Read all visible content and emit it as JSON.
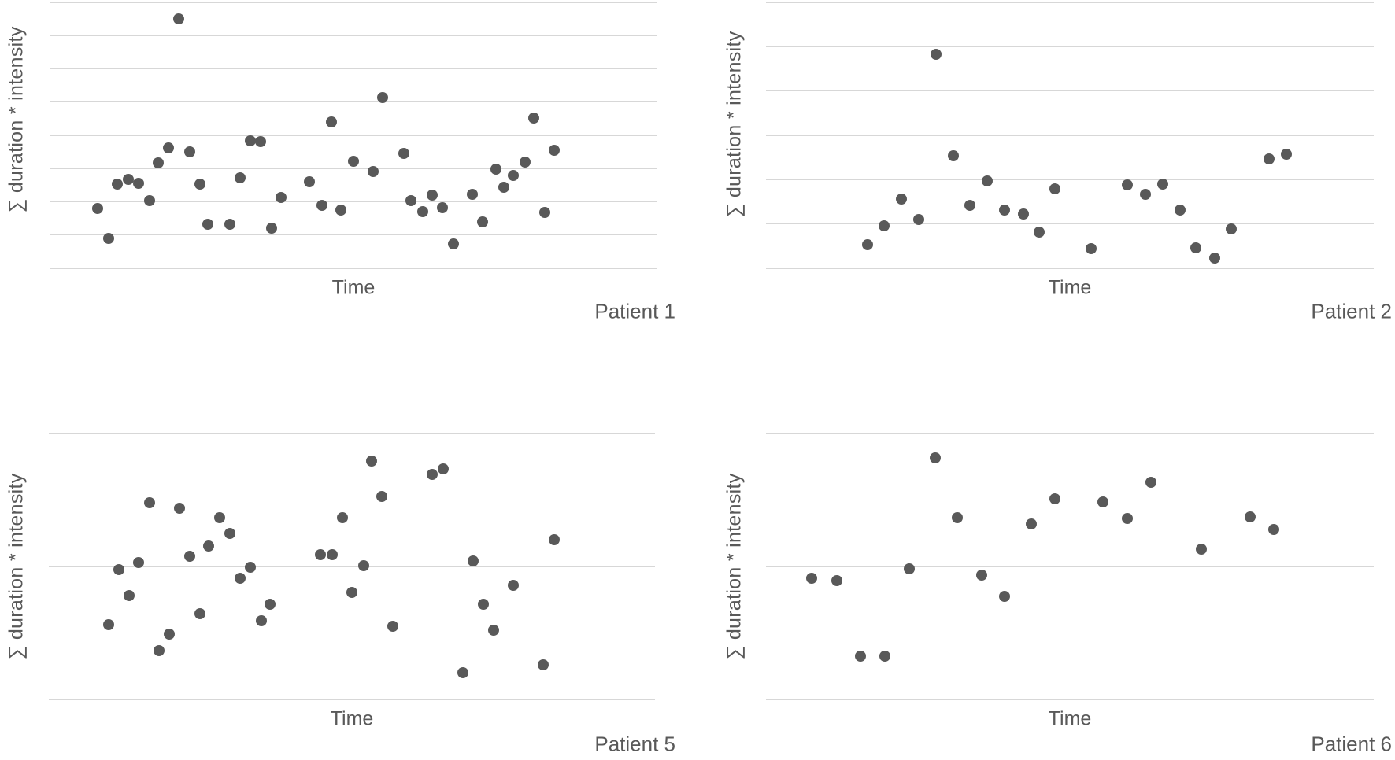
{
  "figure": {
    "background": "#ffffff",
    "point_color": "#595959",
    "gridline_color": "#d7d7d7",
    "text_color": "#595959"
  },
  "chart_data": [
    {
      "type": "scatter",
      "title": "Patient 1",
      "xlabel": "Time",
      "ylabel": "∑ duration * intensity",
      "tick_labels": "none",
      "legend": "none",
      "gridlines": 9,
      "points_rel": [
        [
          0.213,
          0.062
        ],
        [
          0.548,
          0.359
        ],
        [
          0.464,
          0.45
        ],
        [
          0.797,
          0.435
        ],
        [
          0.33,
          0.522
        ],
        [
          0.347,
          0.524
        ],
        [
          0.196,
          0.548
        ],
        [
          0.23,
          0.563
        ],
        [
          0.583,
          0.568
        ],
        [
          0.83,
          0.555
        ],
        [
          0.179,
          0.605
        ],
        [
          0.5,
          0.598
        ],
        [
          0.532,
          0.637
        ],
        [
          0.734,
          0.627
        ],
        [
          0.782,
          0.6
        ],
        [
          0.314,
          0.659
        ],
        [
          0.763,
          0.652
        ],
        [
          0.111,
          0.684
        ],
        [
          0.13,
          0.667
        ],
        [
          0.147,
          0.68
        ],
        [
          0.247,
          0.682
        ],
        [
          0.428,
          0.674
        ],
        [
          0.747,
          0.694
        ],
        [
          0.164,
          0.746
        ],
        [
          0.381,
          0.734
        ],
        [
          0.595,
          0.746
        ],
        [
          0.63,
          0.726
        ],
        [
          0.696,
          0.721
        ],
        [
          0.079,
          0.776
        ],
        [
          0.448,
          0.764
        ],
        [
          0.614,
          0.786
        ],
        [
          0.647,
          0.771
        ],
        [
          0.479,
          0.781
        ],
        [
          0.815,
          0.789
        ],
        [
          0.712,
          0.825
        ],
        [
          0.261,
          0.833
        ],
        [
          0.297,
          0.835
        ],
        [
          0.365,
          0.85
        ],
        [
          0.097,
          0.887
        ],
        [
          0.664,
          0.907
        ]
      ]
    },
    {
      "type": "scatter",
      "title": "Patient 2",
      "xlabel": "Time",
      "ylabel": "∑ duration * intensity",
      "tick_labels": "none",
      "legend": "none",
      "gridlines": 7,
      "points_rel": [
        [
          0.28,
          0.194
        ],
        [
          0.308,
          0.576
        ],
        [
          0.828,
          0.589
        ],
        [
          0.856,
          0.572
        ],
        [
          0.364,
          0.671
        ],
        [
          0.476,
          0.7
        ],
        [
          0.595,
          0.687
        ],
        [
          0.653,
          0.682
        ],
        [
          0.624,
          0.722
        ],
        [
          0.223,
          0.74
        ],
        [
          0.336,
          0.763
        ],
        [
          0.393,
          0.781
        ],
        [
          0.424,
          0.796
        ],
        [
          0.681,
          0.781
        ],
        [
          0.251,
          0.818
        ],
        [
          0.194,
          0.84
        ],
        [
          0.766,
          0.852
        ],
        [
          0.449,
          0.865
        ],
        [
          0.167,
          0.911
        ],
        [
          0.535,
          0.927
        ],
        [
          0.707,
          0.924
        ],
        [
          0.738,
          0.961
        ]
      ]
    },
    {
      "type": "scatter",
      "title": "Patient 5",
      "xlabel": "Time",
      "ylabel": "∑ duration * intensity",
      "tick_labels": "none",
      "legend": "none",
      "gridlines": 7,
      "points_rel": [
        [
          0.533,
          0.103
        ],
        [
          0.632,
          0.153
        ],
        [
          0.65,
          0.134
        ],
        [
          0.549,
          0.238
        ],
        [
          0.166,
          0.259
        ],
        [
          0.216,
          0.281
        ],
        [
          0.282,
          0.318
        ],
        [
          0.484,
          0.318
        ],
        [
          0.299,
          0.376
        ],
        [
          0.834,
          0.398
        ],
        [
          0.264,
          0.423
        ],
        [
          0.233,
          0.462
        ],
        [
          0.448,
          0.457
        ],
        [
          0.467,
          0.457
        ],
        [
          0.148,
          0.486
        ],
        [
          0.7,
          0.479
        ],
        [
          0.115,
          0.513
        ],
        [
          0.519,
          0.496
        ],
        [
          0.333,
          0.503
        ],
        [
          0.315,
          0.545
        ],
        [
          0.766,
          0.572
        ],
        [
          0.133,
          0.609
        ],
        [
          0.5,
          0.599
        ],
        [
          0.365,
          0.642
        ],
        [
          0.717,
          0.642
        ],
        [
          0.249,
          0.677
        ],
        [
          0.35,
          0.704
        ],
        [
          0.099,
          0.719
        ],
        [
          0.568,
          0.726
        ],
        [
          0.734,
          0.74
        ],
        [
          0.199,
          0.753
        ],
        [
          0.182,
          0.816
        ],
        [
          0.815,
          0.87
        ],
        [
          0.683,
          0.899
        ]
      ]
    },
    {
      "type": "scatter",
      "title": "Patient 6",
      "xlabel": "Time",
      "ylabel": "∑ duration * intensity",
      "tick_labels": "none",
      "legend": "none",
      "gridlines": 9,
      "points_rel": [
        [
          0.279,
          0.091
        ],
        [
          0.633,
          0.184
        ],
        [
          0.475,
          0.245
        ],
        [
          0.555,
          0.258
        ],
        [
          0.315,
          0.317
        ],
        [
          0.594,
          0.319
        ],
        [
          0.796,
          0.313
        ],
        [
          0.436,
          0.34
        ],
        [
          0.835,
          0.362
        ],
        [
          0.716,
          0.434
        ],
        [
          0.236,
          0.508
        ],
        [
          0.075,
          0.544
        ],
        [
          0.116,
          0.552
        ],
        [
          0.355,
          0.532
        ],
        [
          0.393,
          0.613
        ],
        [
          0.155,
          0.836
        ],
        [
          0.196,
          0.838
        ]
      ]
    }
  ]
}
